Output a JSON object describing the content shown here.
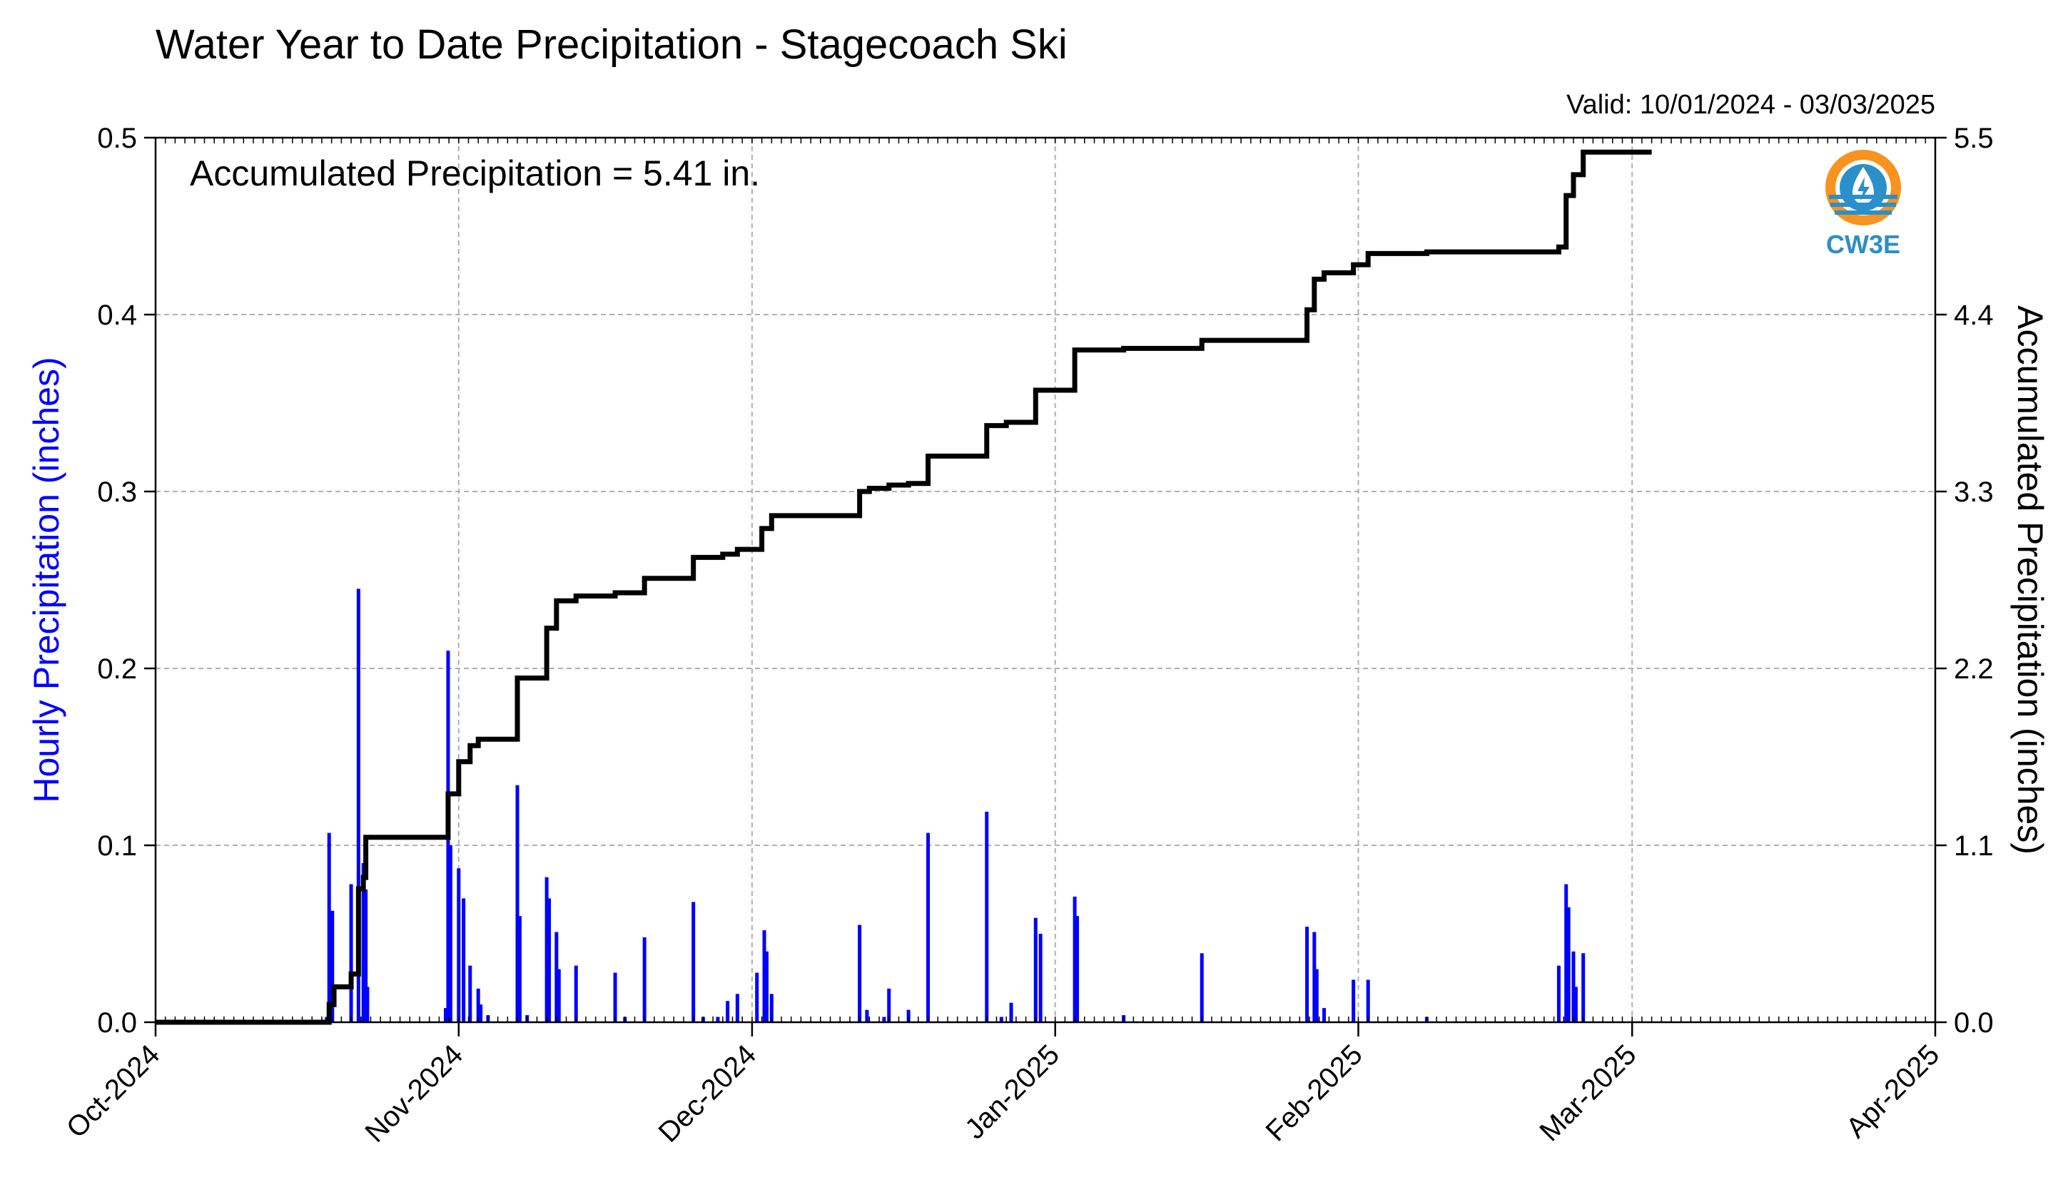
{
  "chart_data": {
    "type": "bar",
    "title": "Water Year to Date Precipitation - Stagecoach Ski",
    "subtitle": "Valid: 10/01/2024 - 03/03/2025",
    "annotation": "Accumulated Precipitation = 5.41 in.",
    "logo_text": "CW3E",
    "ylabel_left": "Hourly Precipitation (inches)",
    "ylabel_right": "Accumulated Precipitation (inches)",
    "x_range": [
      "2024-10-01",
      "2025-04-01"
    ],
    "x_ticks": [
      {
        "date": "2024-10-01",
        "label": "Oct-2024"
      },
      {
        "date": "2024-11-01",
        "label": "Nov-2024"
      },
      {
        "date": "2024-12-01",
        "label": "Dec-2024"
      },
      {
        "date": "2025-01-01",
        "label": "Jan-2025"
      },
      {
        "date": "2025-02-01",
        "label": "Feb-2025"
      },
      {
        "date": "2025-03-01",
        "label": "Mar-2025"
      },
      {
        "date": "2025-04-01",
        "label": "Apr-2025"
      }
    ],
    "ylim_left": [
      0,
      0.5
    ],
    "yticks_left": [
      "0.0",
      "0.1",
      "0.2",
      "0.3",
      "0.4",
      "0.5"
    ],
    "ylim_right": [
      0,
      5.5
    ],
    "yticks_right": [
      "0.0",
      "1.1",
      "2.2",
      "3.3",
      "4.4",
      "5.5"
    ],
    "grid": true,
    "series": [
      {
        "name": "Hourly Precipitation",
        "axis": "left",
        "color": "#0000ff",
        "type": "bar",
        "points": [
          [
            "2024-10-18T12:00",
            0.003
          ],
          [
            "2024-10-18T18:00",
            0.107
          ],
          [
            "2024-10-19T02:00",
            0.063
          ],
          [
            "2024-10-21T00:00",
            0.078
          ],
          [
            "2024-10-21T18:00",
            0.245
          ],
          [
            "2024-10-22T06:00",
            0.09
          ],
          [
            "2024-10-22T12:00",
            0.075
          ],
          [
            "2024-10-22T16:00",
            0.02
          ],
          [
            "2024-10-30T16:00",
            0.008
          ],
          [
            "2024-10-30T22:00",
            0.21
          ],
          [
            "2024-10-31T04:00",
            0.1
          ],
          [
            "2024-11-01T00:00",
            0.087
          ],
          [
            "2024-11-01T12:00",
            0.07
          ],
          [
            "2024-11-02T04:00",
            0.032
          ],
          [
            "2024-11-03T00:00",
            0.019
          ],
          [
            "2024-11-03T06:00",
            0.01
          ],
          [
            "2024-11-04T00:00",
            0.004
          ],
          [
            "2024-11-07T00:00",
            0.134
          ],
          [
            "2024-11-07T06:00",
            0.06
          ],
          [
            "2024-11-08T00:00",
            0.004
          ],
          [
            "2024-11-10T00:00",
            0.082
          ],
          [
            "2024-11-10T06:00",
            0.07
          ],
          [
            "2024-11-11T00:00",
            0.051
          ],
          [
            "2024-11-11T06:00",
            0.03
          ],
          [
            "2024-11-13T00:00",
            0.032
          ],
          [
            "2024-11-17T00:00",
            0.028
          ],
          [
            "2024-11-18T00:00",
            0.003
          ],
          [
            "2024-11-20T00:00",
            0.048
          ],
          [
            "2024-11-25T00:00",
            0.068
          ],
          [
            "2024-11-26T00:00",
            0.003
          ],
          [
            "2024-11-27T12:00",
            0.003
          ],
          [
            "2024-11-28T12:00",
            0.012
          ],
          [
            "2024-11-29T12:00",
            0.016
          ],
          [
            "2024-12-01T12:00",
            0.028
          ],
          [
            "2024-12-02T06:00",
            0.052
          ],
          [
            "2024-12-02T12:00",
            0.04
          ],
          [
            "2024-12-03T00:00",
            0.016
          ],
          [
            "2024-12-12T00:00",
            0.055
          ],
          [
            "2024-12-12T18:00",
            0.007
          ],
          [
            "2024-12-14T12:00",
            0.003
          ],
          [
            "2024-12-15T00:00",
            0.019
          ],
          [
            "2024-12-17T00:00",
            0.007
          ],
          [
            "2024-12-19T00:00",
            0.107
          ],
          [
            "2024-12-25T00:00",
            0.119
          ],
          [
            "2024-12-26T12:00",
            0.003
          ],
          [
            "2024-12-27T12:00",
            0.011
          ],
          [
            "2024-12-30T00:00",
            0.059
          ],
          [
            "2024-12-30T12:00",
            0.05
          ],
          [
            "2025-01-03T00:00",
            0.071
          ],
          [
            "2025-01-03T06:00",
            0.06
          ],
          [
            "2025-01-08T00:00",
            0.004
          ],
          [
            "2025-01-16T00:00",
            0.039
          ],
          [
            "2025-01-26T18:00",
            0.054
          ],
          [
            "2025-01-27T12:00",
            0.051
          ],
          [
            "2025-01-27T18:00",
            0.03
          ],
          [
            "2025-01-28T12:00",
            0.008
          ],
          [
            "2025-01-31T12:00",
            0.024
          ],
          [
            "2025-02-02T00:00",
            0.024
          ],
          [
            "2025-02-08T00:00",
            0.003
          ],
          [
            "2025-02-21T12:00",
            0.032
          ],
          [
            "2025-02-22T06:00",
            0.078
          ],
          [
            "2025-02-22T12:00",
            0.065
          ],
          [
            "2025-02-23T00:00",
            0.04
          ],
          [
            "2025-02-23T06:00",
            0.02
          ],
          [
            "2025-02-24T00:00",
            0.039
          ]
        ]
      },
      {
        "name": "Accumulated Precipitation",
        "axis": "right",
        "color": "#000000",
        "type": "step-line",
        "points": [
          [
            "2024-10-01T00:00",
            0.0
          ],
          [
            "2024-10-18T12:00",
            0.0
          ],
          [
            "2024-10-18T18:00",
            0.11
          ],
          [
            "2024-10-19T06:00",
            0.22
          ],
          [
            "2024-10-21T00:00",
            0.3
          ],
          [
            "2024-10-21T18:00",
            0.83
          ],
          [
            "2024-10-22T06:00",
            0.9
          ],
          [
            "2024-10-22T12:00",
            1.15
          ],
          [
            "2024-10-30T22:00",
            1.42
          ],
          [
            "2024-11-01T00:00",
            1.62
          ],
          [
            "2024-11-02T04:00",
            1.72
          ],
          [
            "2024-11-03T00:00",
            1.76
          ],
          [
            "2024-11-07T00:00",
            2.14
          ],
          [
            "2024-11-10T00:00",
            2.45
          ],
          [
            "2024-11-11T00:00",
            2.62
          ],
          [
            "2024-11-13T00:00",
            2.65
          ],
          [
            "2024-11-17T00:00",
            2.67
          ],
          [
            "2024-11-20T00:00",
            2.76
          ],
          [
            "2024-11-25T00:00",
            2.89
          ],
          [
            "2024-11-28T00:00",
            2.91
          ],
          [
            "2024-11-29T12:00",
            2.94
          ],
          [
            "2024-12-02T00:00",
            3.07
          ],
          [
            "2024-12-03T00:00",
            3.15
          ],
          [
            "2024-12-12T00:00",
            3.3
          ],
          [
            "2024-12-13T00:00",
            3.32
          ],
          [
            "2024-12-15T00:00",
            3.34
          ],
          [
            "2024-12-17T00:00",
            3.35
          ],
          [
            "2024-12-19T00:00",
            3.52
          ],
          [
            "2024-12-25T00:00",
            3.71
          ],
          [
            "2024-12-27T00:00",
            3.73
          ],
          [
            "2024-12-30T00:00",
            3.93
          ],
          [
            "2025-01-03T00:00",
            4.18
          ],
          [
            "2025-01-08T00:00",
            4.19
          ],
          [
            "2025-01-16T00:00",
            4.24
          ],
          [
            "2025-01-26T18:00",
            4.43
          ],
          [
            "2025-01-27T12:00",
            4.62
          ],
          [
            "2025-01-28T12:00",
            4.66
          ],
          [
            "2025-01-31T12:00",
            4.71
          ],
          [
            "2025-02-02T00:00",
            4.78
          ],
          [
            "2025-02-08T00:00",
            4.79
          ],
          [
            "2025-02-21T12:00",
            4.82
          ],
          [
            "2025-02-22T06:00",
            5.14
          ],
          [
            "2025-02-23T00:00",
            5.27
          ],
          [
            "2025-02-24T00:00",
            5.41
          ],
          [
            "2025-03-03T00:00",
            5.41
          ]
        ]
      }
    ]
  }
}
